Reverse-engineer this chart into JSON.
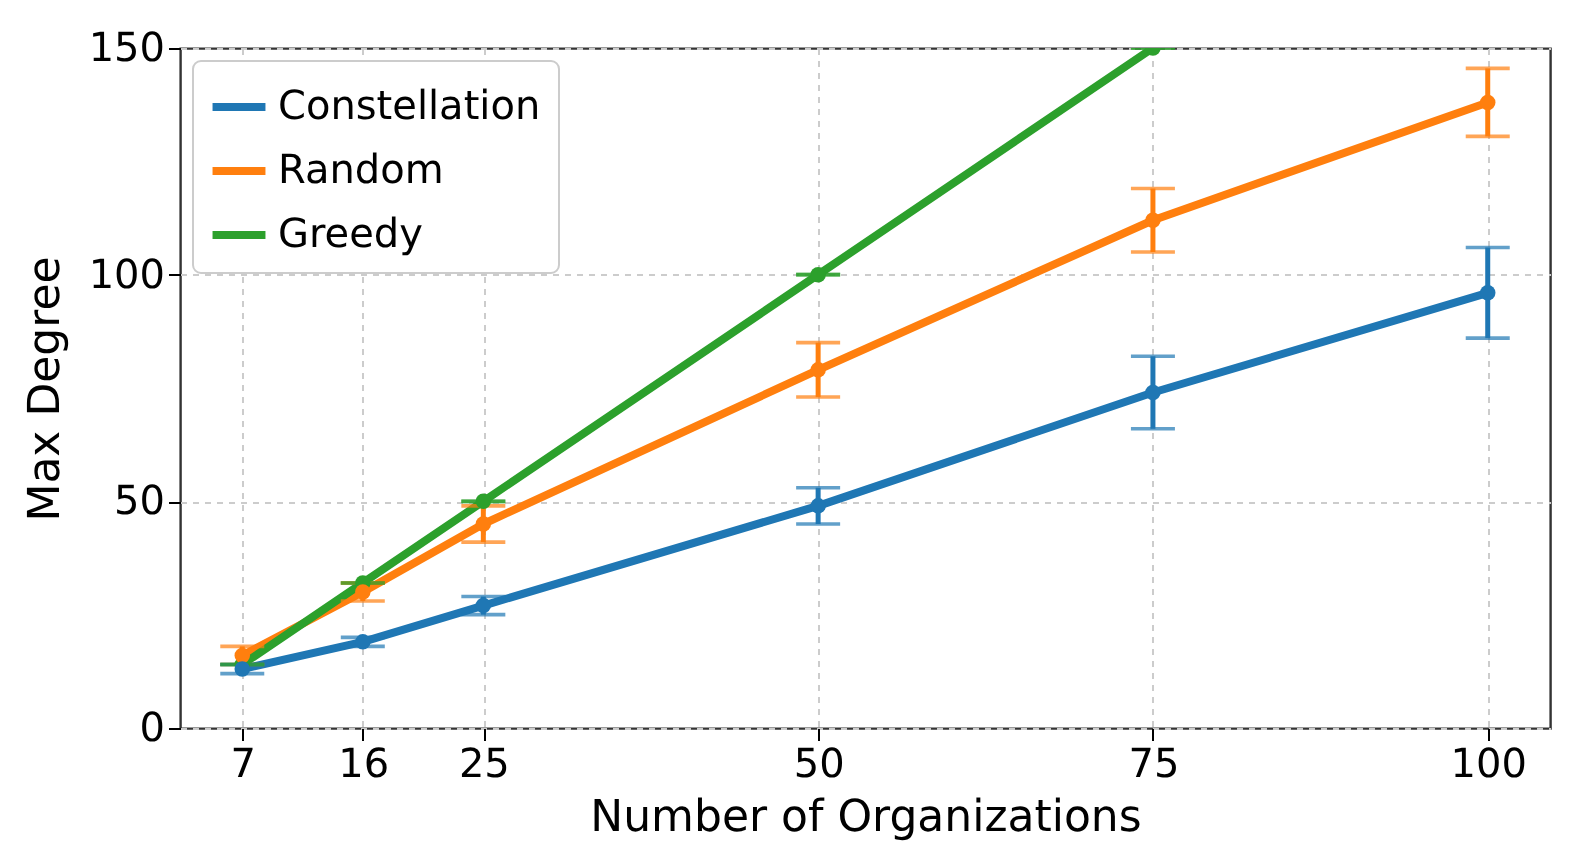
{
  "chart_data": {
    "type": "line",
    "xlabel": "Number of Organizations",
    "ylabel": "Max Degree",
    "x": [
      7,
      16,
      25,
      50,
      75,
      100
    ],
    "series": [
      {
        "name": "Constellation",
        "color": "#1f77b4",
        "values": [
          13,
          19,
          27,
          49,
          74,
          96
        ],
        "errors": [
          1,
          1,
          2,
          4,
          8,
          10
        ]
      },
      {
        "name": "Random",
        "color": "#ff7f0e",
        "values": [
          16,
          30,
          45,
          79,
          112,
          138
        ],
        "errors": [
          2,
          2,
          4,
          6,
          7,
          7.5
        ]
      },
      {
        "name": "Greedy",
        "color": "#2ca02c",
        "values": [
          14,
          32,
          50,
          100,
          150,
          null
        ],
        "errors": [
          0,
          0,
          0,
          0,
          0,
          null
        ]
      }
    ],
    "xlim": [
      2.35,
      104.65
    ],
    "xticks": [
      7,
      16,
      25,
      50,
      75,
      100
    ],
    "ylim": [
      0,
      150
    ],
    "yticks": [
      0,
      50,
      100,
      150
    ],
    "grid": true,
    "legend": "top left",
    "marker": "circle",
    "line_style": "solid"
  }
}
